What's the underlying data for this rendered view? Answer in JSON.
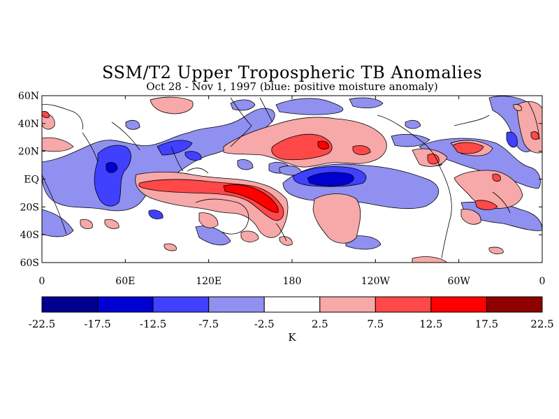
{
  "title": "SSM/T2 Upper Tropospheric TB Anomalies",
  "subtitle": "Oct 28 - Nov 1, 1997 (blue: positive moisture anomaly)",
  "map": {
    "lat_labels": [
      "60N",
      "40N",
      "20N",
      "EQ",
      "20S",
      "40S",
      "60S"
    ],
    "lon_labels": [
      "0",
      "60E",
      "120E",
      "180",
      "120W",
      "60W",
      "0"
    ],
    "lat_range": [
      -60,
      60
    ],
    "lon_range": [
      0,
      360
    ],
    "grid": false
  },
  "colorbar": {
    "unit": "K",
    "ticks": [
      "-22.5",
      "-17.5",
      "-12.5",
      "-7.5",
      "-2.5",
      "2.5",
      "7.5",
      "12.5",
      "17.5",
      "22.5"
    ],
    "colors": [
      "#00008f",
      "#0000d0",
      "#4040ff",
      "#9090f0",
      "#ffffff",
      "#f7a8a8",
      "#ff4848",
      "#ff0000",
      "#8f0000"
    ]
  },
  "colors": {
    "blue_light": "#9090f0",
    "blue_mid": "#4040ff",
    "blue_dark": "#0000d0",
    "red_light": "#f7a8a8",
    "red_mid": "#ff4848",
    "red_dark": "#ff0000"
  }
}
